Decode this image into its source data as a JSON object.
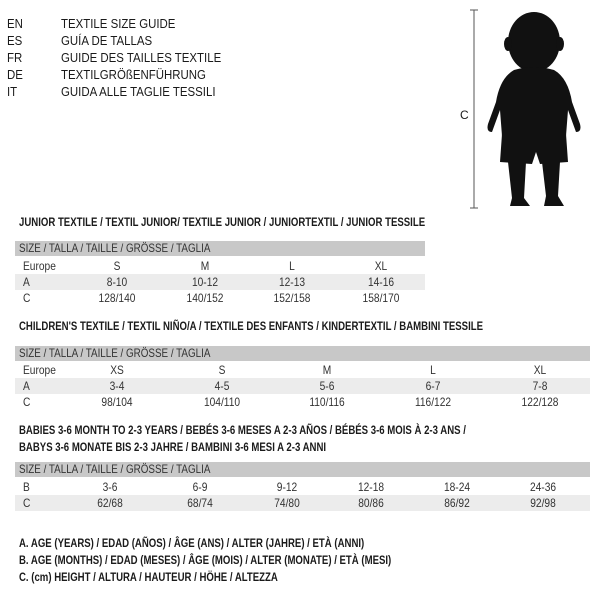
{
  "languages": [
    {
      "code": "EN",
      "text": "TEXTILE SIZE GUIDE"
    },
    {
      "code": "ES",
      "text": "GUÍA DE TALLAS"
    },
    {
      "code": "FR",
      "text": "GUIDE DES TAILLES TEXTILE"
    },
    {
      "code": "DE",
      "text": "TEXTILGRÖßENFÜHRUNG"
    },
    {
      "code": "IT",
      "text": "GUIDA ALLE TAGLIE TESSILI"
    }
  ],
  "figure": {
    "measure_label": "C"
  },
  "junior": {
    "title": "JUNIOR TEXTILE / TEXTIL JUNIOR/ TEXTILE JUNIOR / JUNIORTEXTIL / JUNIOR TESSILE",
    "header": "SIZE / TALLA / TAILLE / GRÖSSE / TAGLIA",
    "rows": [
      {
        "label": "Europe",
        "values": [
          "S",
          "M",
          "L",
          "XL"
        ]
      },
      {
        "label": "A",
        "values": [
          "8-10",
          "10-12",
          "12-13",
          "14-16"
        ]
      },
      {
        "label": "C",
        "values": [
          "128/140",
          "140/152",
          "152/158",
          "158/170"
        ]
      }
    ]
  },
  "children": {
    "title": "CHILDREN'S TEXTILE / TEXTIL NIÑO/A / TEXTILE DES ENFANTS / KINDERTEXTIL / BAMBINI TESSILE",
    "header": "SIZE / TALLA / TAILLE / GRÖSSE / TAGLIA",
    "rows": [
      {
        "label": "Europe",
        "values": [
          "XS",
          "S",
          "M",
          "L",
          "XL"
        ]
      },
      {
        "label": "A",
        "values": [
          "3-4",
          "4-5",
          "5-6",
          "6-7",
          "7-8"
        ]
      },
      {
        "label": "C",
        "values": [
          "98/104",
          "104/110",
          "110/116",
          "116/122",
          "122/128"
        ]
      }
    ]
  },
  "babies": {
    "title_line1": "BABIES 3-6 MONTH TO 2-3 YEARS / BEBÉS 3-6 MESES A 2-3 AÑOS / BÉBÉS 3-6 MOIS À 2-3 ANS /",
    "title_line2": "BABYS 3-6 MONATE BIS 2-3 JAHRE / BAMBINI 3-6 MESI A 2-3 ANNI",
    "header": "SIZE / TALLA / TAILLE / GRÖSSE / TAGLIA",
    "rows": [
      {
        "label": "B",
        "values": [
          "3-6",
          "6-9",
          "9-12",
          "12-18",
          "18-24",
          "24-36"
        ]
      },
      {
        "label": "C",
        "values": [
          "62/68",
          "68/74",
          "74/80",
          "80/86",
          "86/92",
          "92/98"
        ]
      }
    ]
  },
  "legend": [
    "A. AGE (YEARS) / EDAD (AÑOS) / ÂGE (ANS) / ALTER (JAHRE) / ETÀ (ANNI)",
    "B. AGE (MONTHS) / EDAD (MESES) / ÂGE (MOIS) / ALTER (MONATE) / ETÀ (MESI)",
    "C. (cm) HEIGHT / ALTURA / HAUTEUR / HÖHE / ALTEZZA"
  ]
}
